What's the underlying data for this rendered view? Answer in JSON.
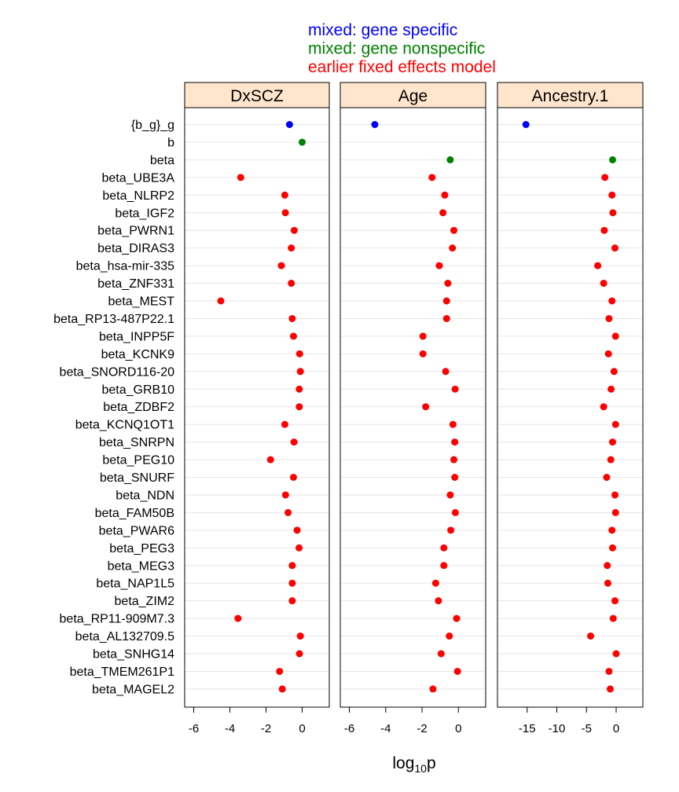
{
  "chart_data": {
    "type": "scatter",
    "xlabel": "log10p",
    "xlabel_main": "log",
    "xlabel_sub": "10",
    "xlabel_tail": "p",
    "legend": [
      {
        "name": "mixed: gene specific",
        "color": "#0000ff"
      },
      {
        "name": "mixed: gene nonspecific",
        "color": "#008000"
      },
      {
        "name": "earlier fixed effects model",
        "color": "#ff0000"
      }
    ],
    "strip_color": "#ffe5cc",
    "grid": true,
    "rows": [
      "{b_g}_g",
      "b",
      "beta",
      "beta_UBE3A",
      "beta_NLRP2",
      "beta_IGF2",
      "beta_PWRN1",
      "beta_DIRAS3",
      "beta_hsa-mir-335",
      "beta_ZNF331",
      "beta_MEST",
      "beta_RP13-487P22.1",
      "beta_INPP5F",
      "beta_KCNK9",
      "beta_SNORD116-20",
      "beta_GRB10",
      "beta_ZDBF2",
      "beta_KCNQ1OT1",
      "beta_SNRPN",
      "beta_PEG10",
      "beta_SNURF",
      "beta_NDN",
      "beta_FAM50B",
      "beta_PWAR6",
      "beta_PEG3",
      "beta_MEG3",
      "beta_NAP1L5",
      "beta_ZIM2",
      "beta_RP11-909M7.3",
      "beta_AL132709.5",
      "beta_SNHG14",
      "beta_TMEM261P1",
      "beta_MAGEL2"
    ],
    "panels": [
      {
        "title": "DxSCZ",
        "xlim": [
          -6.5,
          1.5
        ],
        "ticks": [
          -6,
          -4,
          -2,
          0
        ],
        "tick_labels": [
          "-6",
          "-4",
          "-2",
          "0"
        ],
        "points": [
          {
            "row": "{b_g}_g",
            "x": -0.7,
            "group": 0
          },
          {
            "row": "b",
            "x": 0.0,
            "group": 1
          },
          {
            "row": "beta_UBE3A",
            "x": -3.4,
            "group": 2
          },
          {
            "row": "beta_NLRP2",
            "x": -0.96,
            "group": 2
          },
          {
            "row": "beta_IGF2",
            "x": -0.93,
            "group": 2
          },
          {
            "row": "beta_PWRN1",
            "x": -0.44,
            "group": 2
          },
          {
            "row": "beta_DIRAS3",
            "x": -0.6,
            "group": 2
          },
          {
            "row": "beta_hsa-mir-335",
            "x": -1.15,
            "group": 2
          },
          {
            "row": "beta_ZNF331",
            "x": -0.6,
            "group": 2
          },
          {
            "row": "beta_MEST",
            "x": -4.5,
            "group": 2
          },
          {
            "row": "beta_RP13-487P22.1",
            "x": -0.55,
            "group": 2
          },
          {
            "row": "beta_INPP5F",
            "x": -0.48,
            "group": 2
          },
          {
            "row": "beta_KCNK9",
            "x": -0.14,
            "group": 2
          },
          {
            "row": "beta_SNORD116-20",
            "x": -0.1,
            "group": 2
          },
          {
            "row": "beta_GRB10",
            "x": -0.16,
            "group": 2
          },
          {
            "row": "beta_ZDBF2",
            "x": -0.16,
            "group": 2
          },
          {
            "row": "beta_KCNQ1OT1",
            "x": -0.96,
            "group": 2
          },
          {
            "row": "beta_SNRPN",
            "x": -0.45,
            "group": 2
          },
          {
            "row": "beta_PEG10",
            "x": -1.75,
            "group": 2
          },
          {
            "row": "beta_SNURF",
            "x": -0.48,
            "group": 2
          },
          {
            "row": "beta_NDN",
            "x": -0.92,
            "group": 2
          },
          {
            "row": "beta_FAM50B",
            "x": -0.78,
            "group": 2
          },
          {
            "row": "beta_PWAR6",
            "x": -0.28,
            "group": 2
          },
          {
            "row": "beta_PEG3",
            "x": -0.17,
            "group": 2
          },
          {
            "row": "beta_MEG3",
            "x": -0.55,
            "group": 2
          },
          {
            "row": "beta_NAP1L5",
            "x": -0.55,
            "group": 2
          },
          {
            "row": "beta_ZIM2",
            "x": -0.55,
            "group": 2
          },
          {
            "row": "beta_RP11-909M7.3",
            "x": -3.55,
            "group": 2
          },
          {
            "row": "beta_AL132709.5",
            "x": -0.1,
            "group": 2
          },
          {
            "row": "beta_SNHG14",
            "x": -0.15,
            "group": 2
          },
          {
            "row": "beta_TMEM261P1",
            "x": -1.25,
            "group": 2
          },
          {
            "row": "beta_MAGEL2",
            "x": -1.1,
            "group": 2
          }
        ]
      },
      {
        "title": "Age",
        "xlim": [
          -6.5,
          1.5
        ],
        "ticks": [
          -6,
          -4,
          -2,
          0
        ],
        "tick_labels": [
          "-6",
          "-4",
          "-2",
          "0"
        ],
        "points": [
          {
            "row": "{b_g}_g",
            "x": -4.6,
            "group": 0
          },
          {
            "row": "beta",
            "x": -0.45,
            "group": 1
          },
          {
            "row": "beta_UBE3A",
            "x": -1.45,
            "group": 2
          },
          {
            "row": "beta_NLRP2",
            "x": -0.75,
            "group": 2
          },
          {
            "row": "beta_IGF2",
            "x": -0.85,
            "group": 2
          },
          {
            "row": "beta_PWRN1",
            "x": -0.25,
            "group": 2
          },
          {
            "row": "beta_DIRAS3",
            "x": -0.33,
            "group": 2
          },
          {
            "row": "beta_hsa-mir-335",
            "x": -1.05,
            "group": 2
          },
          {
            "row": "beta_ZNF331",
            "x": -0.58,
            "group": 2
          },
          {
            "row": "beta_MEST",
            "x": -0.65,
            "group": 2
          },
          {
            "row": "beta_RP13-487P22.1",
            "x": -0.65,
            "group": 2
          },
          {
            "row": "beta_INPP5F",
            "x": -1.95,
            "group": 2
          },
          {
            "row": "beta_KCNK9",
            "x": -1.95,
            "group": 2
          },
          {
            "row": "beta_SNORD116-20",
            "x": -0.7,
            "group": 2
          },
          {
            "row": "beta_GRB10",
            "x": -0.18,
            "group": 2
          },
          {
            "row": "beta_ZDBF2",
            "x": -1.8,
            "group": 2
          },
          {
            "row": "beta_KCNQ1OT1",
            "x": -0.3,
            "group": 2
          },
          {
            "row": "beta_SNRPN",
            "x": -0.2,
            "group": 2
          },
          {
            "row": "beta_PEG10",
            "x": -0.25,
            "group": 2
          },
          {
            "row": "beta_SNURF",
            "x": -0.2,
            "group": 2
          },
          {
            "row": "beta_NDN",
            "x": -0.45,
            "group": 2
          },
          {
            "row": "beta_FAM50B",
            "x": -0.17,
            "group": 2
          },
          {
            "row": "beta_PWAR6",
            "x": -0.42,
            "group": 2
          },
          {
            "row": "beta_PEG3",
            "x": -0.8,
            "group": 2
          },
          {
            "row": "beta_MEG3",
            "x": -0.8,
            "group": 2
          },
          {
            "row": "beta_NAP1L5",
            "x": -1.25,
            "group": 2
          },
          {
            "row": "beta_ZIM2",
            "x": -1.1,
            "group": 2
          },
          {
            "row": "beta_RP11-909M7.3",
            "x": -0.1,
            "group": 2
          },
          {
            "row": "beta_AL132709.5",
            "x": -0.5,
            "group": 2
          },
          {
            "row": "beta_SNHG14",
            "x": -0.95,
            "group": 2
          },
          {
            "row": "beta_TMEM261P1",
            "x": -0.05,
            "group": 2
          },
          {
            "row": "beta_MAGEL2",
            "x": -1.4,
            "group": 2
          }
        ]
      },
      {
        "title": "Ancestry.1",
        "xlim": [
          -20,
          4.5
        ],
        "ticks": [
          -15,
          -10,
          -5,
          0
        ],
        "tick_labels": [
          "-15",
          "-10",
          "-5",
          "0"
        ],
        "points": [
          {
            "row": "{b_g}_g",
            "x": -15.2,
            "group": 0
          },
          {
            "row": "beta",
            "x": -0.6,
            "group": 1
          },
          {
            "row": "beta_UBE3A",
            "x": -1.9,
            "group": 2
          },
          {
            "row": "beta_NLRP2",
            "x": -0.7,
            "group": 2
          },
          {
            "row": "beta_IGF2",
            "x": -0.55,
            "group": 2
          },
          {
            "row": "beta_PWRN1",
            "x": -2.0,
            "group": 2
          },
          {
            "row": "beta_DIRAS3",
            "x": -0.2,
            "group": 2
          },
          {
            "row": "beta_hsa-mir-335",
            "x": -3.1,
            "group": 2
          },
          {
            "row": "beta_ZNF331",
            "x": -2.1,
            "group": 2
          },
          {
            "row": "beta_MEST",
            "x": -0.7,
            "group": 2
          },
          {
            "row": "beta_RP13-487P22.1",
            "x": -1.2,
            "group": 2
          },
          {
            "row": "beta_INPP5F",
            "x": -0.1,
            "group": 2
          },
          {
            "row": "beta_KCNK9",
            "x": -1.3,
            "group": 2
          },
          {
            "row": "beta_SNORD116-20",
            "x": -0.35,
            "group": 2
          },
          {
            "row": "beta_GRB10",
            "x": -0.85,
            "group": 2
          },
          {
            "row": "beta_ZDBF2",
            "x": -2.1,
            "group": 2
          },
          {
            "row": "beta_KCNQ1OT1",
            "x": -0.1,
            "group": 2
          },
          {
            "row": "beta_SNRPN",
            "x": -0.6,
            "group": 2
          },
          {
            "row": "beta_PEG10",
            "x": -0.9,
            "group": 2
          },
          {
            "row": "beta_SNURF",
            "x": -1.6,
            "group": 2
          },
          {
            "row": "beta_NDN",
            "x": -0.2,
            "group": 2
          },
          {
            "row": "beta_FAM50B",
            "x": -0.1,
            "group": 2
          },
          {
            "row": "beta_PWAR6",
            "x": -0.7,
            "group": 2
          },
          {
            "row": "beta_PEG3",
            "x": -0.6,
            "group": 2
          },
          {
            "row": "beta_MEG3",
            "x": -1.5,
            "group": 2
          },
          {
            "row": "beta_NAP1L5",
            "x": -1.4,
            "group": 2
          },
          {
            "row": "beta_ZIM2",
            "x": -0.2,
            "group": 2
          },
          {
            "row": "beta_RP11-909M7.3",
            "x": -0.5,
            "group": 2
          },
          {
            "row": "beta_AL132709.5",
            "x": -4.3,
            "group": 2
          },
          {
            "row": "beta_SNHG14",
            "x": 0.0,
            "group": 2
          },
          {
            "row": "beta_TMEM261P1",
            "x": -1.2,
            "group": 2
          },
          {
            "row": "beta_MAGEL2",
            "x": -1.0,
            "group": 2
          }
        ]
      }
    ]
  }
}
